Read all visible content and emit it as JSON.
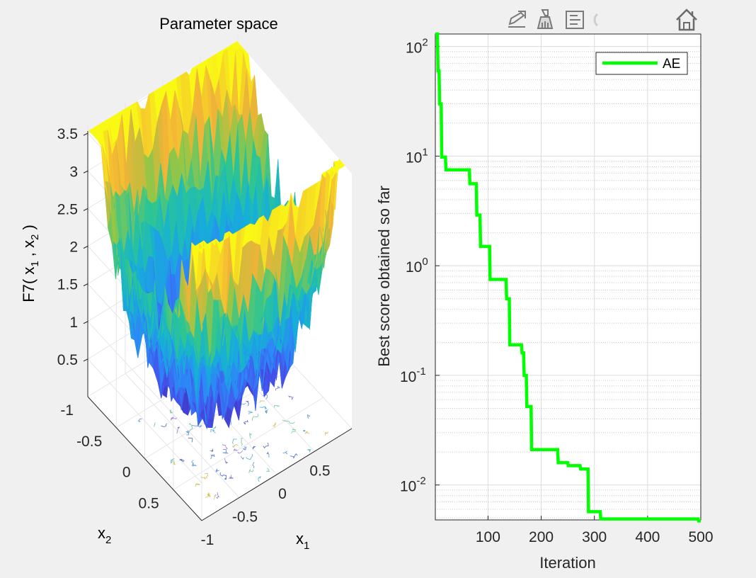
{
  "window": {
    "toolbar": {
      "buttons": [
        {
          "name": "export-icon"
        },
        {
          "name": "brush-icon"
        },
        {
          "name": "datatip-icon"
        },
        {
          "name": "pan-icon"
        },
        {
          "name": "home-icon"
        }
      ]
    }
  },
  "colors": {
    "background": "#f0f0f0",
    "series": "#00ff00",
    "axis": "#262626",
    "grid": "#dfdfdf"
  },
  "chart_data": [
    {
      "type": "surface",
      "title": "Parameter space",
      "xlabel": "x",
      "xlabel_sub": "1",
      "ylabel": "x",
      "ylabel_sub": "2",
      "zlabel_parts": [
        "F7( x",
        "1",
        " , x",
        "2",
        " )"
      ],
      "x_ticks": [
        "-1",
        "-0.5",
        "0",
        "0.5"
      ],
      "y_ticks": [
        "-1",
        "-0.5",
        "0",
        "0.5"
      ],
      "z_ticks": [
        "0.5",
        "1",
        "1.5",
        "2",
        "2.5",
        "3",
        "3.5"
      ],
      "xlim": [
        -1,
        1
      ],
      "ylim": [
        -1,
        1
      ],
      "zlim": [
        0,
        3.6
      ],
      "colormap": "parula"
    },
    {
      "type": "line",
      "yscale": "log",
      "xlabel": "Iteration",
      "ylabel": "Best score obtained so far",
      "xlim": [
        1,
        500
      ],
      "ylim": [
        0.0048,
        130
      ],
      "x_ticks": [
        "100",
        "200",
        "300",
        "400",
        "500"
      ],
      "y_ticks": [
        {
          "base": "10",
          "exp": "2",
          "value": 100
        },
        {
          "base": "10",
          "exp": "1",
          "value": 10
        },
        {
          "base": "10",
          "exp": "0",
          "value": 1
        },
        {
          "base": "10",
          "exp": "-1",
          "value": 0.1
        },
        {
          "base": "10",
          "exp": "-2",
          "value": 0.01
        }
      ],
      "legend": {
        "location": "top-right"
      },
      "series": [
        {
          "name": "AE",
          "color": "#00ff00",
          "x": [
            1,
            5,
            6,
            8,
            9,
            12,
            13,
            20,
            21,
            55,
            56,
            65,
            66,
            78,
            79,
            85,
            86,
            103,
            104,
            134,
            135,
            140,
            141,
            147,
            148,
            163,
            164,
            167,
            168,
            172,
            173,
            181,
            182,
            198,
            199,
            231,
            232,
            250,
            251,
            273,
            274,
            288,
            289,
            301,
            302,
            311,
            312,
            475,
            476,
            495,
            496,
            500
          ],
          "y": [
            130,
            130,
            60,
            60,
            30,
            30,
            9.8,
            9.8,
            7.5,
            7.5,
            7.5,
            7.5,
            5.6,
            5.6,
            2.9,
            2.9,
            1.5,
            1.5,
            0.75,
            0.75,
            0.5,
            0.5,
            0.19,
            0.19,
            0.19,
            0.19,
            0.16,
            0.16,
            0.1,
            0.1,
            0.052,
            0.052,
            0.021,
            0.021,
            0.021,
            0.021,
            0.016,
            0.016,
            0.015,
            0.015,
            0.014,
            0.014,
            0.0057,
            0.0057,
            0.0057,
            0.0057,
            0.0049,
            0.0049,
            0.0049,
            0.0049,
            0.0047,
            0.0047
          ]
        }
      ]
    }
  ]
}
